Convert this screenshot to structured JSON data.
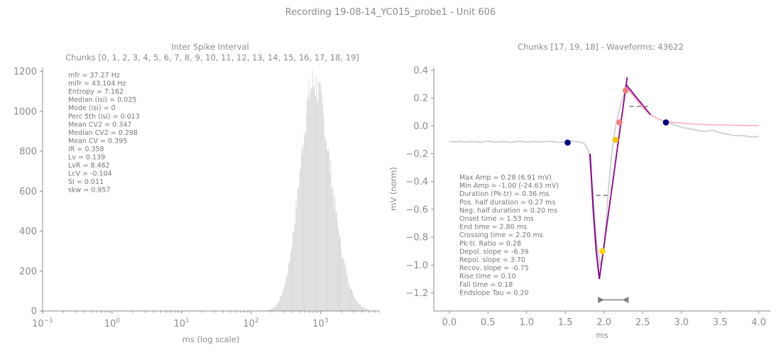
{
  "figure": {
    "suptitle": "Recording 19-08-14_YC015_probe1 - Unit 606"
  },
  "chart_data": [
    {
      "type": "bar",
      "title": "Inter Spike Interval",
      "subtitle": "Chunks [0, 1, 2, 3, 4, 5, 6, 7, 8, 9, 10, 11, 12, 13, 14, 15, 16, 17, 18, 19]",
      "xlabel": "ms (log scale)",
      "ylabel": "",
      "x_scale": "log",
      "xlim": [
        0.1,
        7000
      ],
      "ylim": [
        0,
        1220
      ],
      "x_ticks": [
        {
          "base": "10",
          "exp": "−1",
          "value": 0.1
        },
        {
          "base": "10",
          "exp": "0",
          "value": 1
        },
        {
          "base": "10",
          "exp": "1",
          "value": 10
        },
        {
          "base": "10",
          "exp": "2",
          "value": 100
        },
        {
          "base": "10",
          "exp": "3",
          "value": 1000
        }
      ],
      "y_ticks": [
        0,
        200,
        400,
        600,
        800,
        1000,
        1200
      ],
      "bar_color": "#d3d3d3",
      "histogram": {
        "peak_ms": 800,
        "peak_count": 1150,
        "log10_spread_left": 0.2,
        "log10_spread_right": 0.25,
        "range_ms": [
          150,
          5000
        ]
      },
      "stats": [
        "mfr = 37.27 Hz",
        "mifr = 43.104 Hz",
        "Entropy = 7.162",
        "Median (isi) = 0.025",
        "Mode (isi) = 0",
        "Perc 5th (isi) = 0.013",
        "Mean CV2 = 0.347",
        "Median CV2 = 0.298",
        "Mean CV = 0.395",
        "IR = 0.358",
        "Lv = 0.139",
        "LvR = 8.462",
        "LcV = -0.104",
        "SI = 0.011",
        "skw = 0.957"
      ]
    },
    {
      "type": "line",
      "title": "Chunks [17, 19, 18] - Waveforms: 43622",
      "xlabel": "ms",
      "ylabel": "mV (norm)",
      "xlim": [
        -0.2,
        4.15
      ],
      "ylim": [
        -1.33,
        0.42
      ],
      "x_ticks": [
        "0.0",
        "0.5",
        "1.0",
        "1.5",
        "2.0",
        "2.5",
        "3.0",
        "3.5",
        "4.0"
      ],
      "y_ticks": [
        "0.4",
        "0.2",
        "0.0",
        "−0.2",
        "−0.4",
        "−0.6",
        "−0.8",
        "−1.0",
        "−1.2"
      ],
      "series": [
        {
          "color": "#cfcfcf",
          "points": [
            [
              0.0,
              -0.112
            ],
            [
              0.1,
              -0.115
            ],
            [
              0.15,
              -0.109
            ],
            [
              0.2,
              -0.116
            ],
            [
              0.3,
              -0.112
            ],
            [
              0.4,
              -0.118
            ],
            [
              0.5,
              -0.11
            ],
            [
              0.6,
              -0.116
            ],
            [
              0.7,
              -0.112
            ],
            [
              0.8,
              -0.118
            ],
            [
              0.9,
              -0.11
            ],
            [
              1.0,
              -0.116
            ],
            [
              1.1,
              -0.112
            ],
            [
              1.2,
              -0.116
            ],
            [
              1.3,
              -0.11
            ],
            [
              1.4,
              -0.118
            ],
            [
              1.5,
              -0.115
            ],
            [
              1.6,
              -0.11
            ],
            [
              1.7,
              -0.118
            ],
            [
              1.75,
              -0.13
            ],
            [
              1.8,
              -0.18
            ],
            [
              1.85,
              -0.45
            ],
            [
              1.9,
              -0.82
            ],
            [
              1.95,
              -1.0
            ],
            [
              2.0,
              -0.9
            ],
            [
              2.05,
              -0.5
            ],
            [
              2.1,
              -0.2
            ],
            [
              2.15,
              0.0
            ],
            [
              2.2,
              0.12
            ],
            [
              2.25,
              0.22
            ],
            [
              2.3,
              0.27
            ],
            [
              2.35,
              0.26
            ],
            [
              2.4,
              0.2
            ],
            [
              2.5,
              0.13
            ],
            [
              2.6,
              0.08
            ],
            [
              2.7,
              0.05
            ],
            [
              2.8,
              0.03
            ],
            [
              2.9,
              0.01
            ],
            [
              3.0,
              -0.01
            ],
            [
              3.1,
              -0.02
            ],
            [
              3.2,
              -0.03
            ],
            [
              3.3,
              -0.04
            ],
            [
              3.4,
              -0.03
            ],
            [
              3.5,
              -0.05
            ],
            [
              3.6,
              -0.06
            ],
            [
              3.7,
              -0.07
            ],
            [
              3.8,
              -0.07
            ],
            [
              3.9,
              -0.08
            ],
            [
              4.0,
              -0.075
            ]
          ]
        },
        {
          "color": "#ffb6c1",
          "points": [
            [
              2.3,
              0.27
            ],
            [
              2.4,
              0.2
            ],
            [
              2.5,
              0.13
            ],
            [
              2.6,
              0.08
            ],
            [
              2.7,
              0.05
            ],
            [
              2.8,
              0.03
            ],
            [
              3.0,
              0.02
            ],
            [
              3.2,
              0.012
            ],
            [
              3.5,
              0.006
            ],
            [
              3.8,
              0.003
            ],
            [
              4.0,
              0.002
            ]
          ]
        },
        {
          "color": "#8b008b",
          "points": [
            [
              1.82,
              -0.2
            ],
            [
              1.84,
              -0.4
            ],
            [
              1.86,
              -0.6
            ],
            [
              1.9,
              -0.9
            ],
            [
              1.92,
              -1.0
            ],
            [
              1.94,
              -1.1
            ]
          ]
        }
      ],
      "fit_lines": [
        {
          "color": "#8b008b",
          "points": [
            [
              1.94,
              -1.1
            ],
            [
              2.3,
              0.35
            ]
          ]
        },
        {
          "color": "#8b008b",
          "points": [
            [
              2.28,
              0.3
            ],
            [
              2.6,
              0.08
            ]
          ]
        }
      ],
      "half_widths": [
        {
          "color": "#808080",
          "y": -0.5,
          "x": [
            1.9,
            2.1
          ]
        },
        {
          "color": "#808080",
          "y": 0.14,
          "x": [
            2.33,
            2.6
          ]
        }
      ],
      "markers": [
        {
          "x": 1.53,
          "y": -0.12,
          "color": "#000080"
        },
        {
          "x": 2.8,
          "y": 0.025,
          "color": "#000080"
        },
        {
          "x": 1.98,
          "y": -0.9,
          "color": "#ffd700"
        },
        {
          "x": 2.15,
          "y": -0.1,
          "color": "#ffc000"
        },
        {
          "x": 2.2,
          "y": 0.025,
          "color": "#f08080"
        },
        {
          "x": 2.28,
          "y": 0.255,
          "color": "#f08080"
        }
      ],
      "duration_bar": {
        "color": "#808080",
        "x": [
          1.94,
          2.3
        ],
        "y": -1.25
      },
      "stats": [
        "Max Amp = 0.28 (6.91 mV)",
        "Min Amp = -1.00 (-24.63 mV)",
        "Duration (Pk-tr) = 0.36 ms",
        "Pos. half duration = 0.27 ms",
        "Neg. half duration = 0.20 ms",
        "Onset time = 1.53 ms",
        "End time = 2.80 ms",
        "Crossing time = 2.20 ms",
        "Pk-tr. Ratio = 0.28",
        "Depol. slope = -6.39",
        "Repol. slope = 3.70",
        "Recov. slope = -0.75",
        "Rise time = 0.10",
        "Fall time = 0.18",
        "Endslope Tau = 0.20"
      ]
    }
  ]
}
